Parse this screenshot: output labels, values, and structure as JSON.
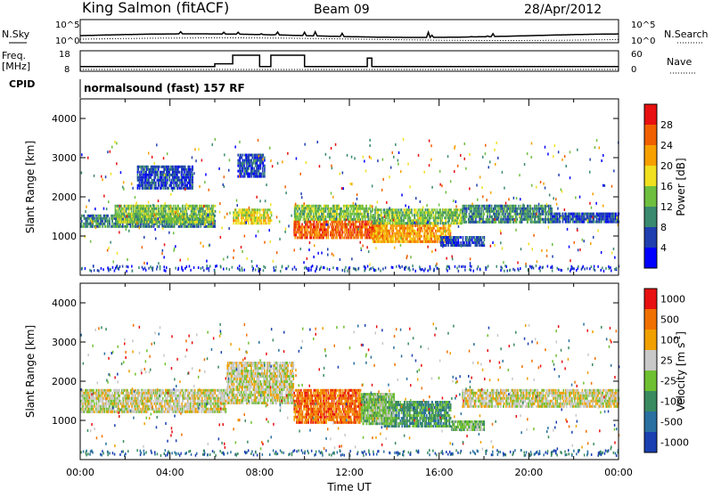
{
  "header": {
    "title": "King Salmon (fitACF)",
    "beam": "Beam 09",
    "date": "28/Apr/2012"
  },
  "top_panel": {
    "left_label": "N.Sky",
    "right_label": "N.Search",
    "left_ticks": [
      "10^5",
      "10^0"
    ],
    "right_ticks": [
      "10^5",
      "10^0"
    ]
  },
  "freq_panel": {
    "left_label": "Freq.",
    "left_unit": "[MHz]",
    "left_ticks": [
      "18",
      "8"
    ],
    "right_label": "Nave",
    "right_ticks": [
      "60",
      "0"
    ],
    "cpid_label": "CPID",
    "cpid_text": "normalsound (fast) 157 RF"
  },
  "chart_data": [
    {
      "type": "heatmap",
      "name": "power",
      "ylabel": "Slant Range [km]",
      "xlabel": "",
      "xlim": [
        0,
        24
      ],
      "ylim": [
        0,
        4500
      ],
      "yticks": [
        "1000",
        "2000",
        "3000",
        "4000"
      ],
      "colorbar_label": "Power [dB]",
      "colorbar_ticks": [
        "4",
        "8",
        "12",
        "16",
        "20",
        "24",
        "28"
      ],
      "colorbar_colors": [
        "#0000ff",
        "#1f3fb0",
        "#3a8a70",
        "#6fbf3f",
        "#f0e020",
        "#f7a000",
        "#f06000",
        "#e81010"
      ],
      "regions": [
        {
          "t0": 0.0,
          "t1": 6.0,
          "r0": 1200,
          "r1": 1550,
          "level": 2
        },
        {
          "t0": 1.5,
          "t1": 6.0,
          "r0": 1350,
          "r1": 1800,
          "level": 3
        },
        {
          "t0": 2.5,
          "t1": 5.0,
          "r0": 2200,
          "r1": 2800,
          "level": 1
        },
        {
          "t0": 6.8,
          "t1": 8.5,
          "r0": 1300,
          "r1": 1700,
          "level": 4
        },
        {
          "t0": 7.0,
          "t1": 8.2,
          "r0": 2500,
          "r1": 3100,
          "level": 1
        },
        {
          "t0": 9.5,
          "t1": 13.5,
          "r0": 900,
          "r1": 1400,
          "level": 6
        },
        {
          "t0": 9.5,
          "t1": 13.0,
          "r0": 1400,
          "r1": 1800,
          "level": 3
        },
        {
          "t0": 13.0,
          "t1": 16.5,
          "r0": 800,
          "r1": 1300,
          "level": 5
        },
        {
          "t0": 13.0,
          "t1": 17.0,
          "r0": 1300,
          "r1": 1700,
          "level": 3
        },
        {
          "t0": 16.0,
          "t1": 18.0,
          "r0": 700,
          "r1": 1000,
          "level": 1
        },
        {
          "t0": 17.0,
          "t1": 21.0,
          "r0": 1300,
          "r1": 1800,
          "level": 2
        },
        {
          "t0": 21.0,
          "t1": 24.0,
          "r0": 1300,
          "r1": 1600,
          "level": 1
        }
      ]
    },
    {
      "type": "heatmap",
      "name": "velocity",
      "ylabel": "Slant Range [km]",
      "xlabel": "Time UT",
      "xlim": [
        0,
        24
      ],
      "ylim": [
        0,
        4500
      ],
      "xticks": [
        "00:00",
        "04:00",
        "08:00",
        "12:00",
        "16:00",
        "20:00",
        "00:00"
      ],
      "yticks": [
        "1000",
        "2000",
        "3000",
        "4000"
      ],
      "colorbar_label": "Velocity [m s",
      "colorbar_unit_exp": "-1",
      "colorbar_ticks": [
        "1000",
        "500",
        "100",
        "25",
        "-25",
        "-100",
        "-500",
        "-1000"
      ],
      "colorbar_colors": [
        "#1a3fb0",
        "#2a70a0",
        "#3a8a60",
        "#6fc030",
        "#c8c8c8",
        "#f0a000",
        "#f07000",
        "#e81010"
      ],
      "regions": [
        {
          "t0": 0.0,
          "t1": 6.5,
          "r0": 1200,
          "r1": 1800,
          "level": 4
        },
        {
          "t0": 6.5,
          "t1": 9.5,
          "r0": 1400,
          "r1": 2500,
          "level": 4
        },
        {
          "t0": 9.5,
          "t1": 12.5,
          "r0": 900,
          "r1": 1800,
          "level": 6
        },
        {
          "t0": 12.5,
          "t1": 13.5,
          "r0": 1000,
          "r1": 1700,
          "level": 4
        },
        {
          "t0": 13.5,
          "t1": 16.5,
          "r0": 800,
          "r1": 1500,
          "level": 2
        },
        {
          "t0": 12.5,
          "t1": 14.0,
          "r0": 900,
          "r1": 1700,
          "level": 3
        },
        {
          "t0": 16.5,
          "t1": 18.0,
          "r0": 700,
          "r1": 1000,
          "level": 3
        },
        {
          "t0": 17.0,
          "t1": 24.0,
          "r0": 1300,
          "r1": 1800,
          "level": 4
        }
      ]
    }
  ],
  "freq_series": {
    "segments": [
      [
        0,
        6.0,
        10
      ],
      [
        6.0,
        6.8,
        12
      ],
      [
        6.8,
        8.0,
        18
      ],
      [
        8.0,
        8.5,
        10
      ],
      [
        8.5,
        10.0,
        18
      ],
      [
        10.0,
        12.8,
        10
      ],
      [
        12.8,
        13.0,
        16
      ],
      [
        13.0,
        24,
        10
      ]
    ]
  }
}
